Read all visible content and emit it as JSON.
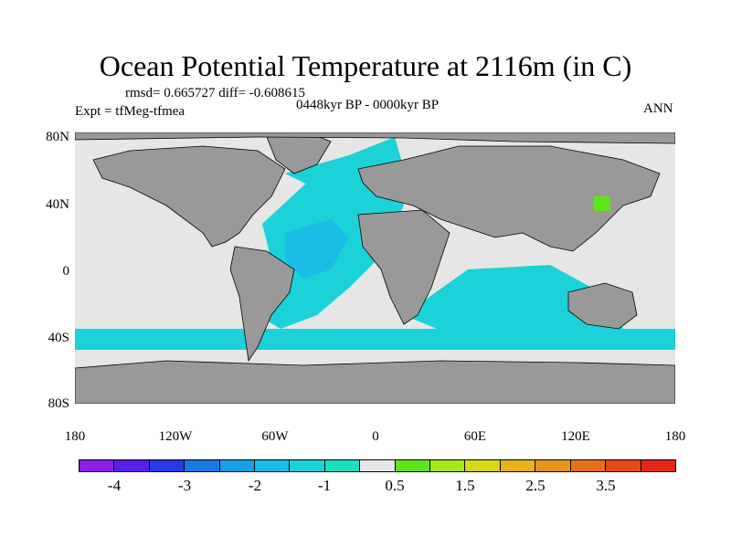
{
  "title": "Ocean Potential Temperature at 2116m (in C)",
  "stats": "rmsd= 0.665727 diff= -0.608615",
  "expt": "Expt = tfMeg-tfmea",
  "period": "0448kyr BP - 0000kyr BP",
  "season": "ANN",
  "y_ticks": [
    "80N",
    "40N",
    "0",
    "40S",
    "80S"
  ],
  "x_ticks": [
    "180",
    "120W",
    "60W",
    "0",
    "60E",
    "120E",
    "180"
  ],
  "colorbar": {
    "colors": [
      "#8a1ee6",
      "#5a1ee6",
      "#2a3ae6",
      "#1a78e6",
      "#1a9fe6",
      "#1abde6",
      "#1ad2d8",
      "#1ae0c0",
      "#e6e6e6",
      "#5ee61a",
      "#a6e61a",
      "#d8d81a",
      "#e6b41a",
      "#e6961a",
      "#e6701a",
      "#e6481a",
      "#e6281a"
    ],
    "labels": [
      "-4",
      "-3",
      "-2",
      "-1",
      "0.5",
      "1.5",
      "2.5",
      "3.5"
    ]
  },
  "legend_colors": {
    "land": "#999999",
    "ocean_neutral": "#e6e6e6",
    "cold_anomaly": "#1ad2d8",
    "warm_anomaly": "#5ee61a"
  }
}
